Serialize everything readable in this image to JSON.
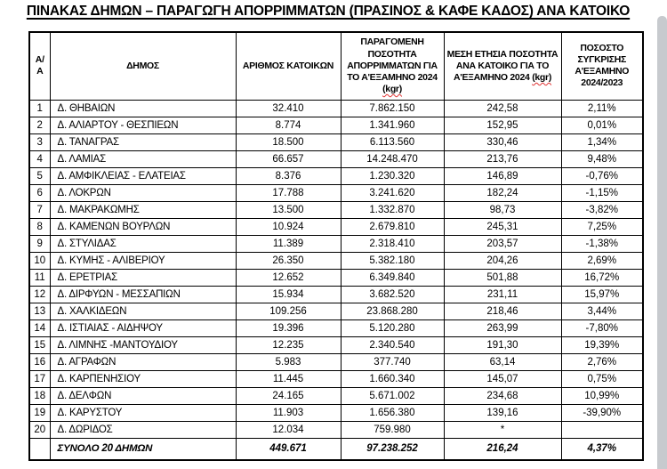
{
  "page": {
    "title": "ΠΙΝΑΚΑΣ ΔΗΜΩΝ – ΠΑΡΑΓΩΓΗ ΑΠΟΡΡΙΜΜΑΤΩΝ (ΠΡΑΣΙΝΟΣ & ΚΑΦΕ ΚΑΔΟΣ) ΑΝΑ ΚΑΤΟΙΚΟ"
  },
  "colors": {
    "border": "#000000",
    "spellcheck_underline": "#e03131",
    "scrollbar": "#c7cace"
  },
  "table": {
    "columns": [
      {
        "label": "Α/Α"
      },
      {
        "label": "ΔΗΜΟΣ"
      },
      {
        "label": "ΑΡΙΘΜΟΣ ΚΑΤΟΙΚΩΝ"
      },
      {
        "title": "ΠΑΡΑΓΟΜΕΝΗ ΠΟΣΟΤΗΤΑ ΑΠΟΡΡΙΜΜΑΤΩΝ ΓΙΑ ΤΟ Α'ΕΞΑΜΗΝΟ 2024",
        "unit": "(kgr)"
      },
      {
        "title": "ΜΕΣΗ ΕΤΗΣΙΑ ΠΟΣΟΤΗΤΑ ΑΝΑ ΚΑΤΟΙΚΟ ΓΙΑ ΤΟ Α'ΕΞΑΜΗΝΟ 2024",
        "unit": "(kgr)"
      },
      {
        "label": "ΠΟΣΟΣΤΟ ΣΥΓΚΡΙΣΗΣ Α'ΕΞΑΜΗΝΟ 2024/2023"
      }
    ],
    "rows": [
      {
        "aa": "1",
        "municipality": "Δ. ΘΗΒΑΙΩΝ",
        "residents": "32.410",
        "quantity_kgr": "7.862.150",
        "per_capita_kgr": "242,58",
        "comparison": "2,11%"
      },
      {
        "aa": "2",
        "municipality": "Δ. ΑΛΙΑΡΤΟΥ - ΘΕΣΠΙΕΩΝ",
        "residents": "8.774",
        "quantity_kgr": "1.341.960",
        "per_capita_kgr": "152,95",
        "comparison": "0,01%"
      },
      {
        "aa": "3",
        "municipality": "Δ. ΤΑΝΑΓΡΑΣ",
        "residents": "18.500",
        "quantity_kgr": "6.113.560",
        "per_capita_kgr": "330,46",
        "comparison": "1,34%"
      },
      {
        "aa": "4",
        "municipality": "Δ. ΛΑΜΙΑΣ",
        "residents": "66.657",
        "quantity_kgr": "14.248.470",
        "per_capita_kgr": "213,76",
        "comparison": "9,48%"
      },
      {
        "aa": "5",
        "municipality": "Δ. ΑΜΦΙΚΛΕΙΑΣ - ΕΛΑΤΕΙΑΣ",
        "residents": "8.376",
        "quantity_kgr": "1.230.320",
        "per_capita_kgr": "146,89",
        "comparison": "-0,76%"
      },
      {
        "aa": "6",
        "municipality": "Δ. ΛΟΚΡΩΝ",
        "residents": "17.788",
        "quantity_kgr": "3.241.620",
        "per_capita_kgr": "182,24",
        "comparison": "-1,15%"
      },
      {
        "aa": "7",
        "municipality": "Δ. ΜΑΚΡΑΚΩΜΗΣ",
        "residents": "13.500",
        "quantity_kgr": "1.332.870",
        "per_capita_kgr": "98,73",
        "comparison": "-3,82%"
      },
      {
        "aa": "8",
        "municipality": "Δ. ΚΑΜΕΝΩΝ ΒΟΥΡΛΩΝ",
        "residents": "10.924",
        "quantity_kgr": "2.679.810",
        "per_capita_kgr": "245,31",
        "comparison": "7,25%"
      },
      {
        "aa": "9",
        "municipality": "Δ. ΣΤΥΛΙΔΑΣ",
        "residents": "11.389",
        "quantity_kgr": "2.318.410",
        "per_capita_kgr": "203,57",
        "comparison": "-1,38%"
      },
      {
        "aa": "10",
        "municipality": "Δ. ΚΥΜΗΣ - ΑΛΙΒΕΡΙΟΥ",
        "residents": "26.350",
        "quantity_kgr": "5.382.180",
        "per_capita_kgr": "204,26",
        "comparison": "2,69%"
      },
      {
        "aa": "11",
        "municipality": "Δ. ΕΡΕΤΡΙΑΣ",
        "residents": "12.652",
        "quantity_kgr": "6.349.840",
        "per_capita_kgr": "501,88",
        "comparison": "16,72%"
      },
      {
        "aa": "12",
        "municipality": "Δ. ΔΙΡΦΥΩΝ - ΜΕΣΣΑΠΙΩΝ",
        "residents": "15.934",
        "quantity_kgr": "3.682.520",
        "per_capita_kgr": "231,11",
        "comparison": "15,97%"
      },
      {
        "aa": "13",
        "municipality": "Δ. ΧΑΛΚΙΔΕΩΝ",
        "residents": "109.256",
        "quantity_kgr": "23.868.280",
        "per_capita_kgr": "218,46",
        "comparison": "3,44%"
      },
      {
        "aa": "14",
        "municipality": "Δ. ΙΣΤΙΑΙΑΣ - ΑΙΔΗΨΟΥ",
        "residents": "19.396",
        "quantity_kgr": "5.120.280",
        "per_capita_kgr": "263,99",
        "comparison": "-7,80%"
      },
      {
        "aa": "15",
        "municipality": "Δ. ΛΙΜΝΗΣ -ΜΑΝΤΟΥΔΙΟΥ",
        "residents": "12.235",
        "quantity_kgr": "2.340.540",
        "per_capita_kgr": "191,30",
        "comparison": "19,39%"
      },
      {
        "aa": "16",
        "municipality": "Δ. ΑΓΡΑΦΩΝ",
        "residents": "5.983",
        "quantity_kgr": "377.740",
        "per_capita_kgr": "63,14",
        "comparison": "2,76%"
      },
      {
        "aa": "17",
        "municipality": "Δ. ΚΑΡΠΕΝΗΣΙΟΥ",
        "residents": "11.445",
        "quantity_kgr": "1.660.340",
        "per_capita_kgr": "145,07",
        "comparison": "0,75%"
      },
      {
        "aa": "18",
        "municipality": "Δ. ΔΕΛΦΩΝ",
        "residents": "24.165",
        "quantity_kgr": "5.671.002",
        "per_capita_kgr": "234,68",
        "comparison": "10,99%"
      },
      {
        "aa": "19",
        "municipality": "Δ. ΚΑΡΥΣΤΟΥ",
        "residents": "11.903",
        "quantity_kgr": "1.656.380",
        "per_capita_kgr": "139,16",
        "comparison": "-39,90%"
      },
      {
        "aa": "20",
        "municipality": "Δ. ΔΩΡΙΔΟΣ",
        "residents": "12.034",
        "quantity_kgr": "759.980",
        "per_capita_kgr": "*",
        "comparison": ""
      }
    ],
    "total": {
      "label": "ΣΥΝΟΛΟ 20 ΔΗΜΩΝ",
      "residents": "449.671",
      "quantity_kgr": "97.238.252",
      "per_capita_kgr": "216,24",
      "comparison": "4,37%"
    }
  }
}
